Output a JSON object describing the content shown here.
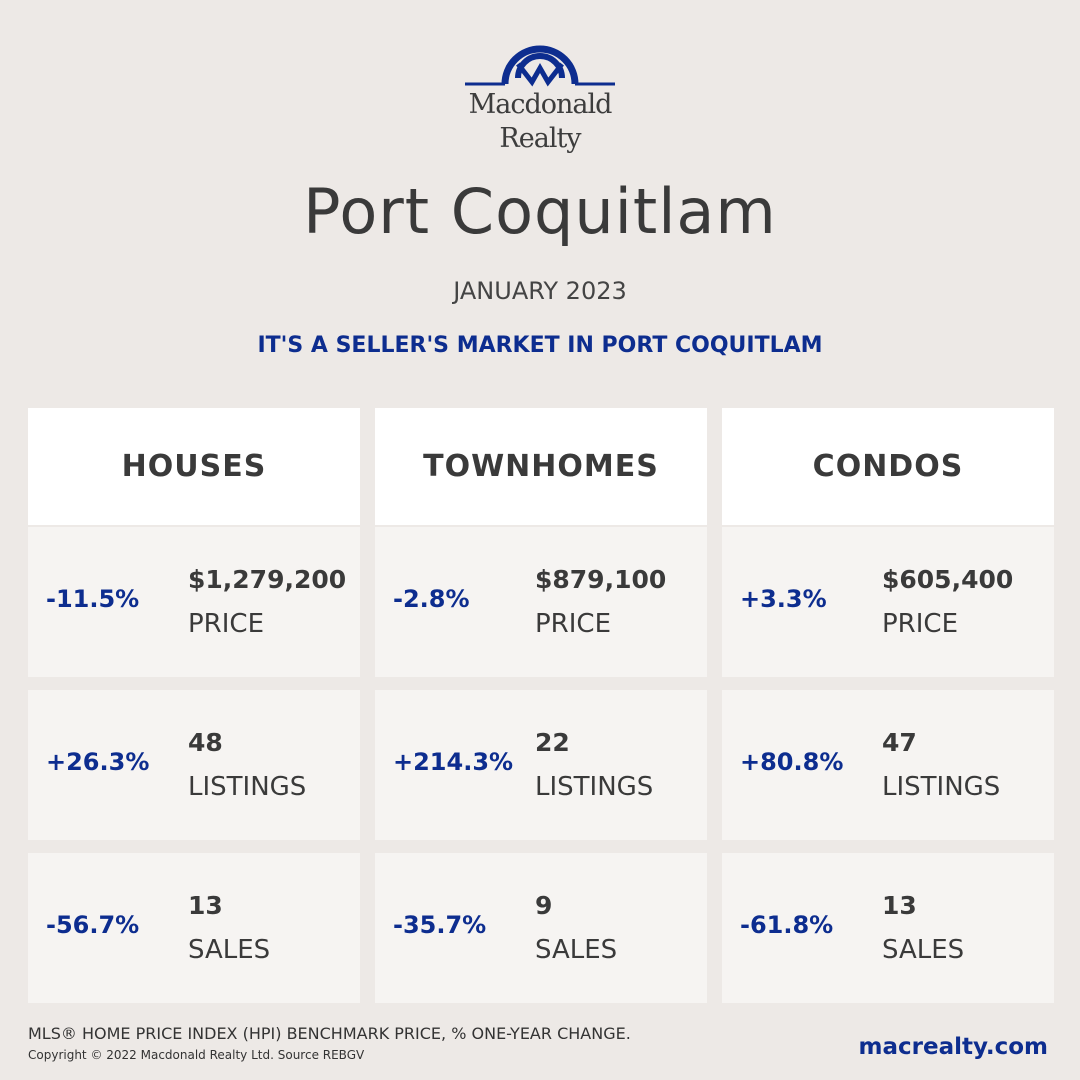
{
  "logo": {
    "line1": "Macdonald",
    "line2": "Realty"
  },
  "title": "Port Coquitlam",
  "month": "JANUARY 2023",
  "tagline": "IT'S A SELLER'S MARKET IN PORT COQUITLAM",
  "columns": [
    {
      "name": "HOUSES",
      "rows": [
        {
          "pct": "-11.5%",
          "value": "$1,279,200",
          "label": "PRICE"
        },
        {
          "pct": "+26.3%",
          "value": "48",
          "label": "LISTINGS"
        },
        {
          "pct": "-56.7%",
          "value": "13",
          "label": "SALES"
        }
      ]
    },
    {
      "name": "TOWNHOMES",
      "rows": [
        {
          "pct": "-2.8%",
          "value": "$879,100",
          "label": "PRICE"
        },
        {
          "pct": "+214.3%",
          "value": "22",
          "label": "LISTINGS"
        },
        {
          "pct": "-35.7%",
          "value": "9",
          "label": "SALES"
        }
      ]
    },
    {
      "name": "CONDOS",
      "rows": [
        {
          "pct": "+3.3%",
          "value": "$605,400",
          "label": "PRICE"
        },
        {
          "pct": "+80.8%",
          "value": "47",
          "label": "LISTINGS"
        },
        {
          "pct": "-61.8%",
          "value": "13",
          "label": "SALES"
        }
      ]
    }
  ],
  "footer": {
    "note": "MLS® HOME PRICE INDEX (HPI) BENCHMARK PRICE, % ONE-YEAR CHANGE.",
    "copyright": "Copyright © 2022 Macdonald Realty Ltd. Source REBGV",
    "site": "macrealty.com"
  },
  "colors": {
    "accent": "#0d2d8f",
    "background": "#ede9e6"
  }
}
